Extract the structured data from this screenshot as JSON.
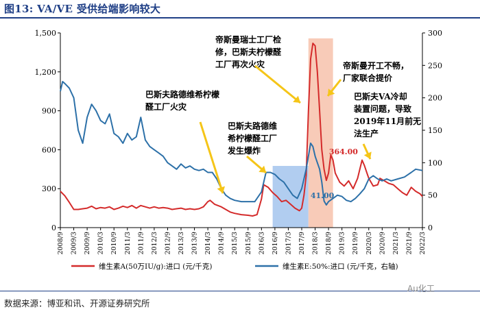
{
  "figure_title": "图13:  VA/VE 受供给端影响较大",
  "source": "数据来源：博亚和讯、开源证券研究所",
  "watermark": "Au化工",
  "colors": {
    "title": "#1f3f86",
    "va_line": "#d42a2a",
    "ve_line": "#2c70a8",
    "highlight_blue": "#a9c8ee",
    "highlight_red": "#f7c2ac",
    "arrow": "#f5c518"
  },
  "chart_data": {
    "type": "line",
    "x_ticks": [
      "2008/9",
      "2009/3",
      "2009/9",
      "2010/3",
      "2010/9",
      "2011/3",
      "2011/9",
      "2012/3",
      "2012/9",
      "2013/3",
      "2013/9",
      "2014/3",
      "2014/9",
      "2015/3",
      "2015/9",
      "2016/3",
      "2016/9",
      "2017/3",
      "2017/9",
      "2018/3",
      "2018/9",
      "2019/3",
      "2019/9",
      "2020/3",
      "2020/9",
      "2021/3",
      "2021/9",
      "2022/3"
    ],
    "y_left": {
      "ticks": [
        0,
        300,
        600,
        900,
        1200,
        1500
      ],
      "tick_labels": [
        "0",
        "300",
        "600",
        "900",
        "1,200",
        "1,500"
      ],
      "ylim": [
        0,
        1500
      ]
    },
    "y_right": {
      "ticks": [
        0,
        50,
        100,
        150,
        200,
        250,
        300
      ],
      "ylim": [
        0,
        300
      ]
    },
    "legend_position": "bottom",
    "highlights": [
      {
        "from": "2016/8",
        "to": "2017/12",
        "color": "blue"
      },
      {
        "from": "2017/12",
        "to": "2018/11",
        "color": "red"
      }
    ],
    "point_labels": [
      {
        "text": "41.00",
        "series": "VE"
      },
      {
        "text": "364.00",
        "series": "VA"
      }
    ],
    "annotations": [
      {
        "id": "a1",
        "text": [
          "巴斯夫路德维希柠檬",
          "醛工厂火灾"
        ]
      },
      {
        "id": "a2",
        "text": [
          "巴斯夫路德维",
          "希柠檬醛工厂",
          "发生爆炸"
        ]
      },
      {
        "id": "a3",
        "text": [
          "帝斯曼瑞士工厂检",
          "修，巴斯夫柠檬醛",
          "工厂再次火灾"
        ]
      },
      {
        "id": "a4",
        "text": [
          "帝斯曼开工不畅，",
          "厂家联合提价"
        ]
      },
      {
        "id": "a5",
        "text": [
          "巴斯夫VA冷却",
          "装置问题，导致",
          "2019年11月前无",
          "法生产"
        ]
      }
    ],
    "series": [
      {
        "name": "维生素A(50万IU/g):进口 (元/千克)",
        "axis": "left",
        "points": [
          [
            "2008/9",
            280
          ],
          [
            "2008/11",
            245
          ],
          [
            "2009/1",
            195
          ],
          [
            "2009/3",
            140
          ],
          [
            "2009/5",
            140
          ],
          [
            "2009/7",
            145
          ],
          [
            "2009/9",
            150
          ],
          [
            "2009/11",
            165
          ],
          [
            "2010/1",
            145
          ],
          [
            "2010/3",
            155
          ],
          [
            "2010/5",
            150
          ],
          [
            "2010/7",
            160
          ],
          [
            "2010/9",
            140
          ],
          [
            "2010/11",
            150
          ],
          [
            "2011/1",
            165
          ],
          [
            "2011/3",
            155
          ],
          [
            "2011/5",
            170
          ],
          [
            "2011/7",
            150
          ],
          [
            "2011/9",
            170
          ],
          [
            "2011/11",
            160
          ],
          [
            "2012/1",
            150
          ],
          [
            "2012/3",
            160
          ],
          [
            "2012/5",
            150
          ],
          [
            "2012/7",
            155
          ],
          [
            "2012/9",
            150
          ],
          [
            "2012/11",
            140
          ],
          [
            "2013/1",
            145
          ],
          [
            "2013/3",
            150
          ],
          [
            "2013/5",
            140
          ],
          [
            "2013/7",
            145
          ],
          [
            "2013/9",
            140
          ],
          [
            "2013/11",
            145
          ],
          [
            "2014/1",
            160
          ],
          [
            "2014/3",
            200
          ],
          [
            "2014/4",
            210
          ],
          [
            "2014/6",
            180
          ],
          [
            "2014/9",
            160
          ],
          [
            "2014/11",
            140
          ],
          [
            "2015/1",
            120
          ],
          [
            "2015/3",
            110
          ],
          [
            "2015/6",
            100
          ],
          [
            "2015/9",
            95
          ],
          [
            "2015/11",
            90
          ],
          [
            "2016/1",
            100
          ],
          [
            "2016/3",
            220
          ],
          [
            "2016/4",
            330
          ],
          [
            "2016/6",
            310
          ],
          [
            "2016/8",
            270
          ],
          [
            "2016/10",
            240
          ],
          [
            "2016/12",
            200
          ],
          [
            "2017/2",
            210
          ],
          [
            "2017/4",
            180
          ],
          [
            "2017/6",
            150
          ],
          [
            "2017/8",
            130
          ],
          [
            "2017/9",
            150
          ],
          [
            "2017/10",
            250
          ],
          [
            "2017/11",
            400
          ],
          [
            "2017/12",
            900
          ],
          [
            "2018/1",
            1300
          ],
          [
            "2018/2",
            1420
          ],
          [
            "2018/3",
            1400
          ],
          [
            "2018/4",
            1200
          ],
          [
            "2018/5",
            900
          ],
          [
            "2018/6",
            600
          ],
          [
            "2018/7",
            450
          ],
          [
            "2018/8",
            364
          ],
          [
            "2018/9",
            420
          ],
          [
            "2018/10",
            560
          ],
          [
            "2018/11",
            520
          ],
          [
            "2018/12",
            420
          ],
          [
            "2019/2",
            350
          ],
          [
            "2019/4",
            320
          ],
          [
            "2019/6",
            360
          ],
          [
            "2019/8",
            300
          ],
          [
            "2019/10",
            380
          ],
          [
            "2019/12",
            520
          ],
          [
            "2020/1",
            480
          ],
          [
            "2020/2",
            430
          ],
          [
            "2020/3",
            380
          ],
          [
            "2020/5",
            320
          ],
          [
            "2020/7",
            330
          ],
          [
            "2020/8",
            380
          ],
          [
            "2020/10",
            360
          ],
          [
            "2020/12",
            340
          ],
          [
            "2021/2",
            330
          ],
          [
            "2021/4",
            300
          ],
          [
            "2021/6",
            270
          ],
          [
            "2021/8",
            250
          ],
          [
            "2021/10",
            310
          ],
          [
            "2021/12",
            280
          ],
          [
            "2022/2",
            260
          ],
          [
            "2022/3",
            240
          ]
        ]
      },
      {
        "name": "维生素E:50%:进口 (元/千克，右轴)",
        "axis": "right",
        "points": [
          [
            "2008/9",
            210
          ],
          [
            "2008/10",
            225
          ],
          [
            "2008/11",
            222
          ],
          [
            "2009/1",
            215
          ],
          [
            "2009/3",
            200
          ],
          [
            "2009/5",
            150
          ],
          [
            "2009/7",
            130
          ],
          [
            "2009/9",
            170
          ],
          [
            "2009/11",
            190
          ],
          [
            "2010/1",
            180
          ],
          [
            "2010/3",
            165
          ],
          [
            "2010/5",
            160
          ],
          [
            "2010/7",
            175
          ],
          [
            "2010/9",
            145
          ],
          [
            "2010/11",
            140
          ],
          [
            "2011/1",
            130
          ],
          [
            "2011/3",
            145
          ],
          [
            "2011/5",
            135
          ],
          [
            "2011/7",
            140
          ],
          [
            "2011/9",
            170
          ],
          [
            "2011/11",
            135
          ],
          [
            "2012/1",
            125
          ],
          [
            "2012/3",
            120
          ],
          [
            "2012/5",
            115
          ],
          [
            "2012/7",
            110
          ],
          [
            "2012/9",
            100
          ],
          [
            "2012/11",
            95
          ],
          [
            "2013/1",
            90
          ],
          [
            "2013/3",
            98
          ],
          [
            "2013/5",
            92
          ],
          [
            "2013/7",
            95
          ],
          [
            "2013/9",
            90
          ],
          [
            "2013/11",
            88
          ],
          [
            "2014/1",
            90
          ],
          [
            "2014/3",
            85
          ],
          [
            "2014/5",
            85
          ],
          [
            "2014/7",
            75
          ],
          [
            "2014/9",
            60
          ],
          [
            "2014/11",
            50
          ],
          [
            "2015/1",
            45
          ],
          [
            "2015/3",
            42
          ],
          [
            "2015/6",
            40
          ],
          [
            "2015/9",
            40
          ],
          [
            "2015/12",
            40
          ],
          [
            "2016/3",
            55
          ],
          [
            "2016/5",
            85
          ],
          [
            "2016/7",
            85
          ],
          [
            "2016/9",
            82
          ],
          [
            "2016/11",
            75
          ],
          [
            "2017/1",
            70
          ],
          [
            "2017/3",
            60
          ],
          [
            "2017/5",
            50
          ],
          [
            "2017/7",
            45
          ],
          [
            "2017/9",
            60
          ],
          [
            "2017/11",
            90
          ],
          [
            "2018/1",
            130
          ],
          [
            "2018/2",
            125
          ],
          [
            "2018/3",
            110
          ],
          [
            "2018/4",
            100
          ],
          [
            "2018/5",
            90
          ],
          [
            "2018/6",
            70
          ],
          [
            "2018/7",
            41
          ],
          [
            "2018/8",
            35
          ],
          [
            "2018/9",
            40
          ],
          [
            "2018/11",
            45
          ],
          [
            "2019/1",
            50
          ],
          [
            "2019/3",
            48
          ],
          [
            "2019/5",
            42
          ],
          [
            "2019/7",
            40
          ],
          [
            "2019/9",
            45
          ],
          [
            "2019/11",
            52
          ],
          [
            "2020/1",
            60
          ],
          [
            "2020/3",
            75
          ],
          [
            "2020/5",
            80
          ],
          [
            "2020/7",
            75
          ],
          [
            "2020/9",
            72
          ],
          [
            "2020/11",
            75
          ],
          [
            "2021/1",
            72
          ],
          [
            "2021/4",
            75
          ],
          [
            "2021/7",
            78
          ],
          [
            "2021/10",
            85
          ],
          [
            "2021/12",
            90
          ],
          [
            "2022/3",
            88
          ]
        ]
      }
    ]
  }
}
